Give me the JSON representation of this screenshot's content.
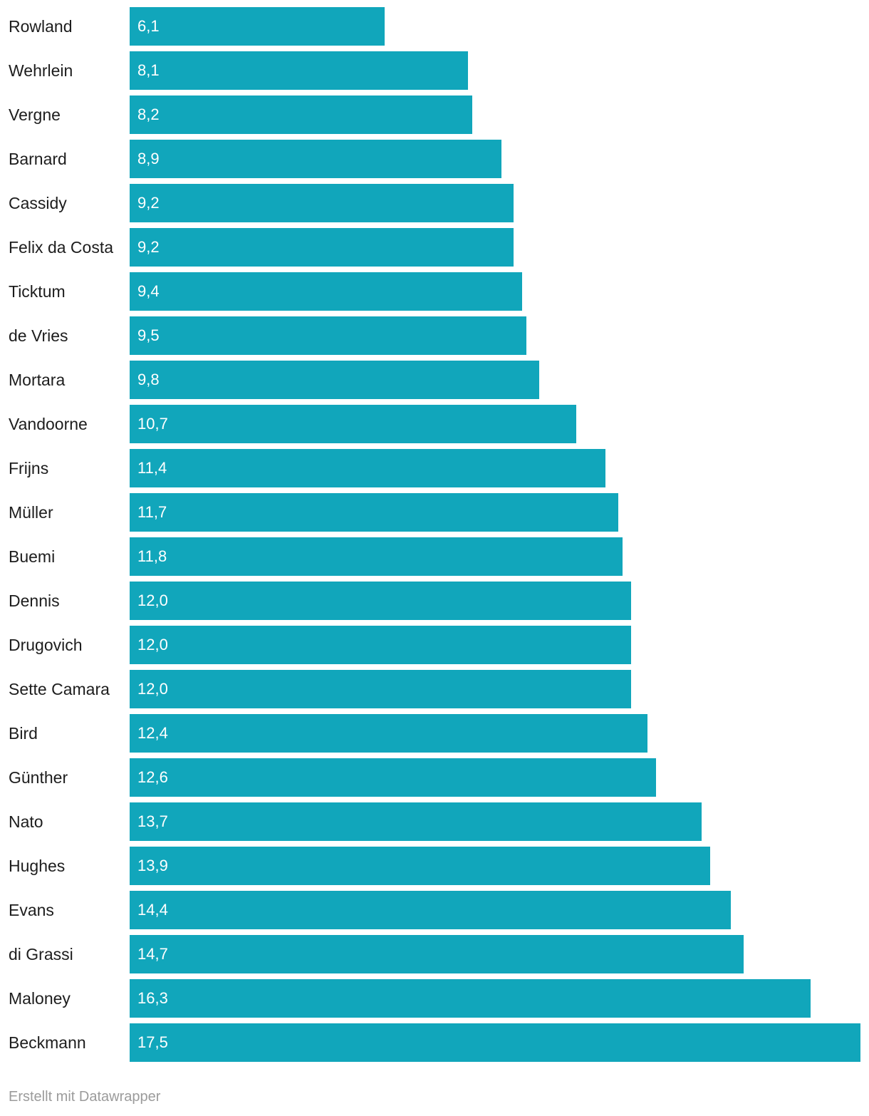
{
  "chart_data": {
    "type": "bar",
    "orientation": "horizontal",
    "categories": [
      "Rowland",
      "Wehrlein",
      "Vergne",
      "Barnard",
      "Cassidy",
      "Felix da Costa",
      "Ticktum",
      "de Vries",
      "Mortara",
      "Vandoorne",
      "Frijns",
      "Müller",
      "Buemi",
      "Dennis",
      "Drugovich",
      "Sette Camara",
      "Bird",
      "Günther",
      "Nato",
      "Hughes",
      "Evans",
      "di Grassi",
      "Maloney",
      "Beckmann"
    ],
    "values": [
      6.1,
      8.1,
      8.2,
      8.9,
      9.2,
      9.2,
      9.4,
      9.5,
      9.8,
      10.7,
      11.4,
      11.7,
      11.8,
      12.0,
      12.0,
      12.0,
      12.4,
      12.6,
      13.7,
      13.9,
      14.4,
      14.7,
      16.3,
      17.5
    ],
    "value_labels": [
      "6,1",
      "8,1",
      "8,2",
      "8,9",
      "9,2",
      "9,2",
      "9,4",
      "9,5",
      "9,8",
      "10,7",
      "11,4",
      "11,7",
      "11,8",
      "12,0",
      "12,0",
      "12,0",
      "12,4",
      "12,6",
      "13,7",
      "13,9",
      "14,4",
      "14,7",
      "16,3",
      "17,5"
    ],
    "xlim": [
      0,
      17.5
    ],
    "bar_color": "#11a6bb",
    "grid": false,
    "legend": "none"
  },
  "footer": {
    "credit": "Erstellt mit Datawrapper"
  },
  "colors": {
    "label_text": "#1d1d1d",
    "value_text": "#ffffff",
    "footer_text": "#9b9b9b"
  }
}
